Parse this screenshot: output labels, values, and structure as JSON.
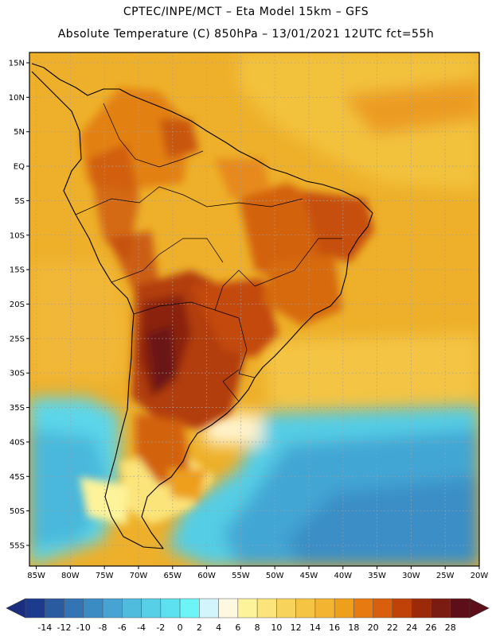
{
  "header": {
    "line1": "CPTEC/INPE/MCT –  Eta Model 15km – GFS",
    "line2": "Absolute Temperature (C) 850hPa – 13/01/2021 12UTC fct=55h"
  },
  "map": {
    "lat_labels": [
      "15N",
      "10N",
      "5N",
      "EQ",
      "5S",
      "10S",
      "15S",
      "20S",
      "25S",
      "30S",
      "35S",
      "40S",
      "45S",
      "50S",
      "55S"
    ],
    "lon_labels": [
      "85W",
      "80W",
      "75W",
      "70W",
      "65W",
      "60W",
      "55W",
      "50W",
      "45W",
      "40W",
      "35W",
      "30W",
      "25W",
      "20W"
    ],
    "lat_values": [
      15,
      10,
      5,
      0,
      -5,
      -10,
      -15,
      -20,
      -25,
      -30,
      -35,
      -40,
      -45,
      -50,
      -55
    ],
    "lon_values": [
      -85,
      -80,
      -75,
      -70,
      -65,
      -60,
      -55,
      -50,
      -45,
      -40,
      -35,
      -30,
      -25,
      -20
    ],
    "lat_range": [
      -58,
      16.5
    ],
    "lon_range": [
      -86,
      -20
    ]
  },
  "colorbar": {
    "labels": [
      "-14",
      "-12",
      "-10",
      "-8",
      "-6",
      "-4",
      "-2",
      "0",
      "2",
      "4",
      "6",
      "8",
      "10",
      "12",
      "14",
      "16",
      "18",
      "20",
      "22",
      "24",
      "26",
      "28"
    ],
    "colors": [
      "#1c3b8c",
      "#2a5aa0",
      "#3274b4",
      "#3c8cc4",
      "#46a3d2",
      "#4fbcde",
      "#57cfe6",
      "#5de0ef",
      "#6cf4f7",
      "#d2f4fb",
      "#fff8e0",
      "#fdf39a",
      "#fbe47a",
      "#f8d35c",
      "#f5c443",
      "#f2b431",
      "#ee9f1b",
      "#e77a10",
      "#d85f0c",
      "#bf4208",
      "#9a2a08",
      "#7a1c12",
      "#5c0f18"
    ],
    "under_color": "#1a2e80",
    "over_color": "#5c0f18"
  }
}
